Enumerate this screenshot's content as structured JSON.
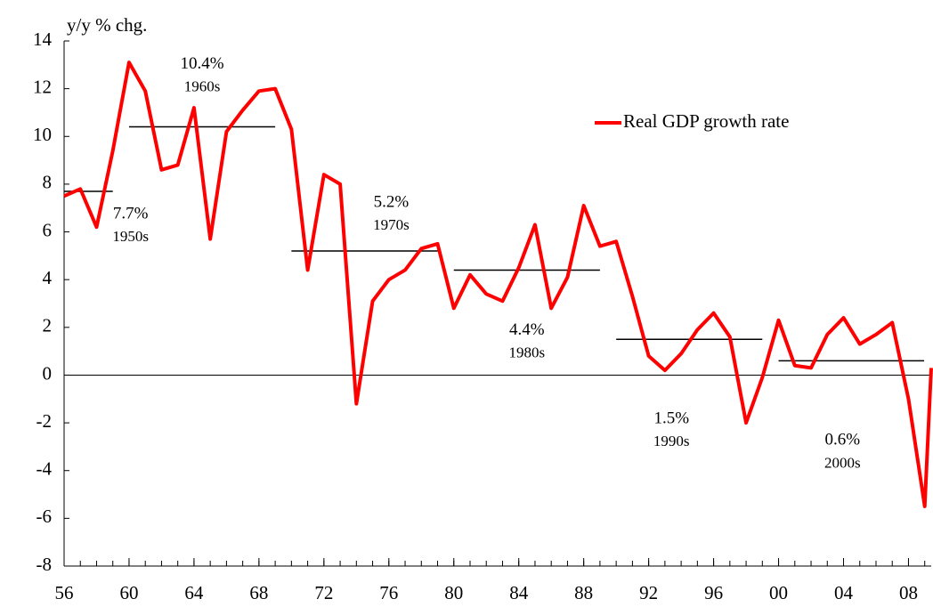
{
  "chart_data": {
    "type": "line",
    "y_axis_label": "y/y % chg.",
    "series": [
      {
        "name": "Real GDP growth rate",
        "color": "#ff0000",
        "x": [
          1956,
          1957,
          1958,
          1959,
          1960,
          1961,
          1962,
          1963,
          1964,
          1965,
          1966,
          1967,
          1968,
          1969,
          1970,
          1971,
          1972,
          1973,
          1974,
          1975,
          1976,
          1977,
          1978,
          1979,
          1980,
          1981,
          1982,
          1983,
          1984,
          1985,
          1986,
          1987,
          1988,
          1989,
          1990,
          1991,
          1992,
          1993,
          1994,
          1995,
          1996,
          1997,
          1998,
          1999,
          2000,
          2001,
          2002,
          2003,
          2004,
          2005,
          2006,
          2007,
          2008,
          2009,
          2009.4
        ],
        "values": [
          7.5,
          7.8,
          6.2,
          9.4,
          13.1,
          11.9,
          8.6,
          8.8,
          11.2,
          5.7,
          10.2,
          11.1,
          11.9,
          12.0,
          10.3,
          4.4,
          8.4,
          8.0,
          -1.2,
          3.1,
          4.0,
          4.4,
          5.3,
          5.5,
          2.8,
          4.2,
          3.4,
          3.1,
          4.5,
          6.3,
          2.8,
          4.1,
          7.1,
          5.4,
          5.6,
          3.3,
          0.8,
          0.2,
          0.9,
          1.9,
          2.6,
          1.6,
          -2.0,
          -0.1,
          2.3,
          0.4,
          0.3,
          1.7,
          2.4,
          1.3,
          1.7,
          2.2,
          -1.0,
          -5.5,
          0.3
        ]
      }
    ],
    "decade_averages": [
      {
        "decade": "1950s",
        "value": 7.7,
        "value_label": "7.7%",
        "x_start": 1956,
        "x_end": 1959
      },
      {
        "decade": "1960s",
        "value": 10.4,
        "value_label": "10.4%",
        "x_start": 1960,
        "x_end": 1969
      },
      {
        "decade": "1970s",
        "value": 5.2,
        "value_label": "5.2%",
        "x_start": 1970,
        "x_end": 1979
      },
      {
        "decade": "1980s",
        "value": 4.4,
        "value_label": "4.4%",
        "x_start": 1980,
        "x_end": 1989
      },
      {
        "decade": "1990s",
        "value": 1.5,
        "value_label": "1.5%",
        "x_start": 1990,
        "x_end": 1999
      },
      {
        "decade": "2000s",
        "value": 0.6,
        "value_label": "0.6%",
        "x_start": 2000,
        "x_end": 2009
      }
    ],
    "xlim": [
      1956,
      2009.4
    ],
    "xticks": [
      {
        "value": 1956,
        "label": "56"
      },
      {
        "value": 1960,
        "label": "60"
      },
      {
        "value": 1964,
        "label": "64"
      },
      {
        "value": 1968,
        "label": "68"
      },
      {
        "value": 1972,
        "label": "72"
      },
      {
        "value": 1976,
        "label": "76"
      },
      {
        "value": 1980,
        "label": "80"
      },
      {
        "value": 1984,
        "label": "84"
      },
      {
        "value": 1988,
        "label": "88"
      },
      {
        "value": 1992,
        "label": "92"
      },
      {
        "value": 1996,
        "label": "96"
      },
      {
        "value": 2000,
        "label": "00"
      },
      {
        "value": 2004,
        "label": "04"
      },
      {
        "value": 2008,
        "label": "08"
      }
    ],
    "ylim": [
      -8,
      14
    ],
    "yticks": [
      -8,
      -6,
      -4,
      -2,
      0,
      2,
      4,
      6,
      8,
      10,
      12,
      14
    ],
    "legend_position": "upper right"
  }
}
